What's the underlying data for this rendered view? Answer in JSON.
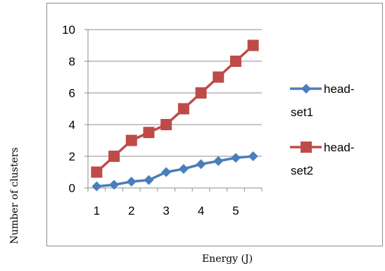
{
  "chart_data": {
    "type": "line",
    "xlabel": "Energy (J)",
    "ylabel": "Number of clusters",
    "xlim": [
      0.75,
      5.75
    ],
    "ylim": [
      0,
      10
    ],
    "x_ticks": [
      1,
      2,
      3,
      4,
      5
    ],
    "y_ticks": [
      0,
      2,
      4,
      6,
      8,
      10
    ],
    "grid": "horizontal",
    "legend_position": "right",
    "series": [
      {
        "name_lines": [
          "head-",
          "set1"
        ],
        "color": "#4a7ebb",
        "marker": "diamond",
        "x": [
          1,
          1.5,
          2,
          2.5,
          3,
          3.5,
          4,
          4.5,
          5,
          5.5
        ],
        "y": [
          0.1,
          0.2,
          0.4,
          0.5,
          1.0,
          1.2,
          1.5,
          1.7,
          1.9,
          2.0
        ]
      },
      {
        "name_lines": [
          "head-",
          "set2"
        ],
        "color": "#be4b48",
        "marker": "square",
        "x": [
          1,
          1.5,
          2,
          2.5,
          3,
          3.5,
          4,
          4.5,
          5,
          5.5
        ],
        "y": [
          1,
          2,
          3,
          3.5,
          4,
          5,
          6,
          7,
          8,
          9
        ]
      }
    ]
  }
}
